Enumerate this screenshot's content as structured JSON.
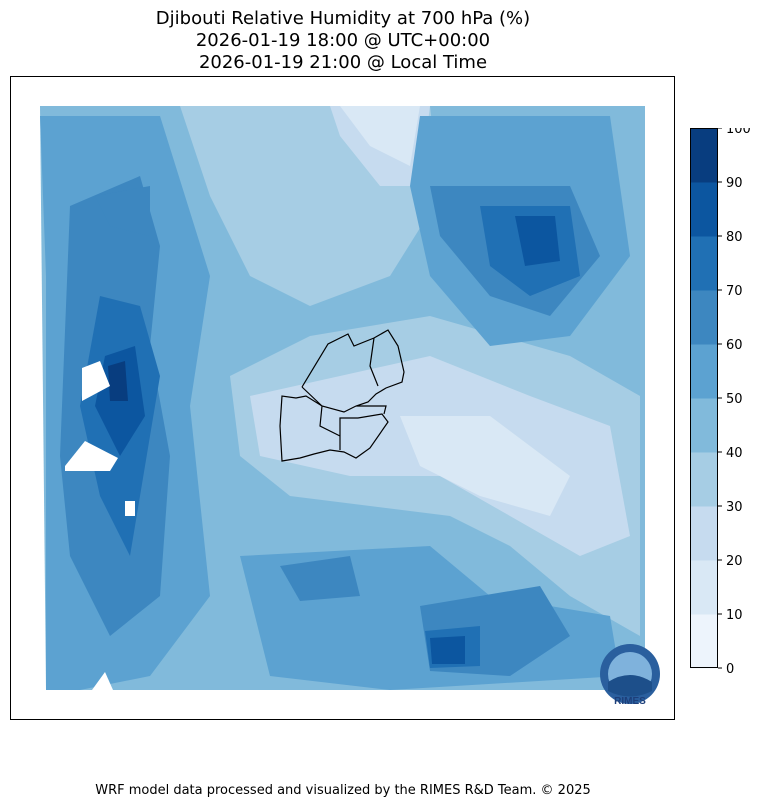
{
  "chart_data": {
    "type": "heatmap",
    "title": [
      "Djibouti Relative Humidity at 700 hPa (%)",
      "2026-01-19 18:00 @ UTC+00:00",
      "2026-01-19 21:00 @ Local Time"
    ],
    "colorbar": {
      "levels": [
        0,
        10,
        20,
        30,
        40,
        50,
        60,
        70,
        80,
        90,
        100
      ],
      "tick_labels": [
        "0",
        "10",
        "20",
        "30",
        "40",
        "50",
        "60",
        "70",
        "80",
        "90",
        "100"
      ],
      "colors": [
        "#edf4fc",
        "#d9e8f5",
        "#c6dbef",
        "#a6cde4",
        "#81badb",
        "#5ca2d1",
        "#3d87c0",
        "#2070b4",
        "#0c56a0",
        "#083d7f"
      ],
      "range": [
        0,
        100
      ]
    },
    "logo_text": "RIMES"
  },
  "footer": "WRF model data processed and visualized by the RIMES R&D Team. © 2025"
}
